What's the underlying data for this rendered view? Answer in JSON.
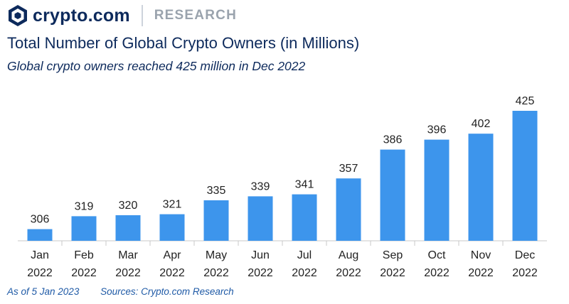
{
  "brand": {
    "name": "crypto.com",
    "section": "RESEARCH"
  },
  "header": {
    "title": "Total Number of Global Crypto Owners (in Millions)",
    "subtitle": "Global crypto owners reached 425 million in Dec 2022"
  },
  "footer": {
    "as_of": "As of 5 Jan 2023",
    "sources": "Sources: Crypto.com Research"
  },
  "colors": {
    "bar": "#3d95ec",
    "title": "#0d2a5c",
    "axis": "#c8c8c8",
    "footer": "#1f5aa6"
  },
  "chart_data": {
    "type": "bar",
    "categories": [
      [
        "Jan",
        "2022"
      ],
      [
        "Feb",
        "2022"
      ],
      [
        "Mar",
        "2022"
      ],
      [
        "Apr",
        "2022"
      ],
      [
        "May",
        "2022"
      ],
      [
        "Jun",
        "2022"
      ],
      [
        "Jul",
        "2022"
      ],
      [
        "Aug",
        "2022"
      ],
      [
        "Sep",
        "2022"
      ],
      [
        "Oct",
        "2022"
      ],
      [
        "Nov",
        "2022"
      ],
      [
        "Dec",
        "2022"
      ]
    ],
    "values": [
      306,
      319,
      320,
      321,
      335,
      339,
      341,
      357,
      386,
      396,
      402,
      425
    ],
    "title": "Total Number of Global Crypto Owners (in Millions)",
    "xlabel": "",
    "ylabel": "",
    "ylim": [
      300,
      425
    ],
    "grid": false,
    "legend": "none",
    "data_labels": true
  }
}
